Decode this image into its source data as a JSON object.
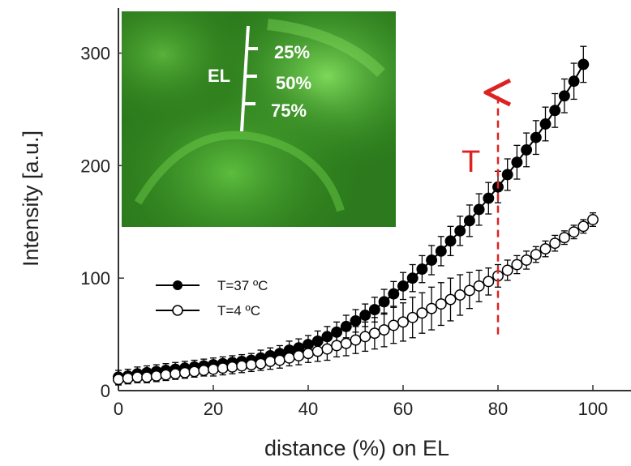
{
  "chart_data": {
    "type": "scatter",
    "xlabel": "distance (%) on EL",
    "ylabel": "Intensity [a.u.]",
    "xlim": [
      0,
      100
    ],
    "ylim": [
      0,
      340
    ],
    "xticks": [
      0,
      20,
      40,
      60,
      80,
      100
    ],
    "yticks": [
      0,
      100,
      200,
      300
    ],
    "grid": false,
    "legend_position": "center-left",
    "series": [
      {
        "name": "T=37 ºC",
        "marker": "filled-circle",
        "color": "#000000",
        "x": [
          0,
          2,
          4,
          6,
          8,
          10,
          12,
          14,
          16,
          18,
          20,
          22,
          24,
          26,
          28,
          30,
          32,
          34,
          36,
          38,
          40,
          42,
          44,
          46,
          48,
          50,
          52,
          54,
          56,
          58,
          60,
          62,
          64,
          66,
          68,
          70,
          72,
          74,
          76,
          78,
          80,
          82,
          84,
          86,
          88,
          90,
          92,
          94,
          96,
          98
        ],
        "y": [
          12,
          13,
          15,
          16,
          17,
          18,
          19,
          20,
          21,
          22,
          23,
          24,
          25,
          26,
          27,
          29,
          31,
          33,
          36,
          38,
          41,
          44,
          48,
          52,
          57,
          62,
          67,
          72,
          79,
          86,
          93,
          100,
          108,
          116,
          124,
          133,
          142,
          151,
          161,
          171,
          181,
          192,
          203,
          214,
          225,
          237,
          249,
          262,
          275,
          290
        ],
        "err": [
          6,
          6,
          6,
          6,
          6,
          6,
          6,
          6,
          6,
          6,
          6,
          6,
          6,
          6,
          6,
          7,
          7,
          7,
          8,
          8,
          8,
          9,
          9,
          9,
          10,
          10,
          10,
          11,
          11,
          11,
          12,
          12,
          12,
          13,
          13,
          13,
          13,
          14,
          14,
          14,
          14,
          14,
          15,
          15,
          15,
          15,
          15,
          15,
          16,
          16
        ]
      },
      {
        "name": "T=4 ºC",
        "marker": "open-circle",
        "color": "#000000",
        "x": [
          0,
          2,
          4,
          6,
          8,
          10,
          12,
          14,
          16,
          18,
          20,
          22,
          24,
          26,
          28,
          30,
          32,
          34,
          36,
          38,
          40,
          42,
          44,
          46,
          48,
          50,
          52,
          54,
          56,
          58,
          60,
          62,
          64,
          66,
          68,
          70,
          72,
          74,
          76,
          78,
          80,
          82,
          84,
          86,
          88,
          90,
          92,
          94,
          96,
          98,
          100
        ],
        "y": [
          10,
          11,
          12,
          12,
          13,
          14,
          15,
          16,
          17,
          18,
          19,
          20,
          21,
          22,
          23,
          24,
          26,
          27,
          29,
          31,
          33,
          35,
          37,
          40,
          42,
          45,
          48,
          51,
          54,
          58,
          61,
          65,
          69,
          73,
          77,
          81,
          85,
          89,
          93,
          97,
          102,
          107,
          112,
          116,
          121,
          126,
          131,
          136,
          141,
          146,
          152
        ],
        "err": [
          5,
          5,
          5,
          5,
          5,
          5,
          5,
          5,
          5,
          5,
          6,
          6,
          6,
          6,
          6,
          6,
          7,
          7,
          7,
          8,
          8,
          9,
          10,
          10,
          11,
          12,
          13,
          14,
          15,
          16,
          17,
          18,
          18,
          19,
          19,
          19,
          18,
          16,
          14,
          12,
          10,
          9,
          8,
          8,
          7,
          7,
          7,
          6,
          6,
          6,
          6
        ]
      }
    ],
    "annotations": [
      {
        "text": "T",
        "color": "#dd2222",
        "arrow": "dashed-up",
        "x": 80,
        "y_from": 50,
        "y_to": 265
      }
    ]
  },
  "inset": {
    "scale_label": "EL",
    "ticks": [
      "25%",
      "50%",
      "75%"
    ]
  }
}
